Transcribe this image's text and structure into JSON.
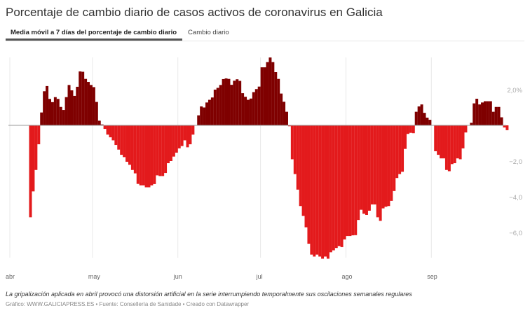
{
  "title": "Porcentaje de cambio diario de casos activos de coronavirus en Galicia",
  "tabs": [
    {
      "label": "Media móvil a 7 días del porcentaje de cambio diario",
      "active": true
    },
    {
      "label": "Cambio diario",
      "active": false
    }
  ],
  "note": "La gripalización aplicada en abril provocó una distorsión artificial en la serie interrumpiendo temporalmente sus oscilaciones semanales regulares",
  "source": "Gráfico: WWW.GALICIAPRESS.ES • Fuente: Consellería de Sanidade • Creado con Datawrapper",
  "colors": {
    "positive": "#7f0000",
    "negative": "#e31a1c",
    "grid": "#e8e8e8",
    "baseline": "#999999",
    "axis_text": "#aaaaaa"
  },
  "chart_data": {
    "type": "bar",
    "title": "Porcentaje de cambio diario de casos activos de coronavirus en Galicia",
    "xlabel": "",
    "ylabel": "",
    "ylim": [
      -7.6,
      4.0
    ],
    "y_ticks": [
      {
        "value": 2,
        "label": "2,0%"
      },
      {
        "value": -2,
        "label": "−2,0"
      },
      {
        "value": -4,
        "label": "−4,0"
      },
      {
        "value": -6,
        "label": "−6,0"
      }
    ],
    "x_ticks": [
      {
        "date": "04-01",
        "label": "abr"
      },
      {
        "date": "05-01",
        "label": "may"
      },
      {
        "date": "06-01",
        "label": "jun"
      },
      {
        "date": "07-01",
        "label": "jul"
      },
      {
        "date": "08-01",
        "label": "ago"
      },
      {
        "date": "09-01",
        "label": "sep"
      }
    ],
    "x_range": [
      "04-01",
      "09-28"
    ],
    "grid": "vertical",
    "dates": {
      "04": [
        8,
        9,
        10,
        11,
        12,
        13,
        14,
        15,
        16,
        17,
        18,
        19,
        20,
        21,
        22,
        23,
        24,
        25,
        26,
        27,
        28,
        29,
        30
      ],
      "05": [
        1,
        2,
        3,
        4,
        5,
        6,
        7,
        8,
        9,
        10,
        11,
        12,
        13,
        14,
        15,
        16,
        17,
        18,
        19,
        20,
        21,
        22,
        23,
        24,
        25,
        26,
        27,
        28,
        29,
        30,
        31
      ],
      "06": [
        1,
        2,
        3,
        4,
        5,
        6,
        7,
        8,
        9,
        10,
        11,
        12,
        13,
        14,
        15,
        16,
        17,
        18,
        19,
        20,
        21,
        22,
        23,
        24,
        25,
        26,
        27,
        28,
        29,
        30
      ],
      "07": [
        1,
        2,
        3,
        4,
        5,
        6,
        7,
        8,
        9,
        10,
        11,
        12,
        13,
        14,
        15,
        16,
        17,
        18,
        19,
        20,
        21,
        22,
        23,
        24,
        25,
        26,
        27,
        28,
        29,
        30,
        31
      ],
      "08": [
        1,
        2,
        3,
        4,
        5,
        6,
        7,
        8,
        9,
        10,
        11,
        12,
        13,
        14,
        15,
        16,
        17,
        18,
        19,
        20,
        21,
        22,
        23,
        24,
        25,
        26,
        27,
        28,
        29,
        30,
        31
      ],
      "09": [
        1,
        2,
        3,
        4,
        5,
        6,
        7,
        8,
        9,
        10,
        11,
        12,
        13,
        14,
        15,
        16,
        17,
        18,
        19,
        20,
        21,
        22,
        23,
        24,
        25,
        26,
        27,
        28
      ]
    },
    "values": [
      -5.15,
      -3.7,
      -2.5,
      -1.06,
      0.72,
      1.91,
      2.2,
      1.48,
      1.3,
      1.58,
      1.48,
      1.03,
      0.86,
      1.58,
      2.26,
      1.96,
      1.65,
      2.16,
      3.02,
      3.0,
      2.6,
      2.43,
      2.26,
      2.14,
      1.31,
      0.26,
      0.05,
      -0.2,
      -0.52,
      -0.67,
      -0.84,
      -1.1,
      -1.36,
      -1.65,
      -1.78,
      -2.04,
      -2.21,
      -2.5,
      -2.69,
      -3.28,
      -3.36,
      -3.36,
      -3.47,
      -3.47,
      -3.36,
      -3.29,
      -2.8,
      -2.84,
      -2.84,
      -2.67,
      -2.12,
      -2.0,
      -1.75,
      -1.53,
      -1.29,
      -1.16,
      -0.84,
      -1.23,
      -1.06,
      -0.52,
      0,
      0.56,
      1.06,
      1.0,
      1.28,
      1.43,
      1.56,
      2.0,
      2.1,
      2.26,
      2.59,
      2.63,
      2.6,
      2.27,
      2.5,
      2.58,
      2.49,
      1.8,
      1.6,
      1.43,
      1.5,
      1.86,
      2.03,
      2.17,
      3.25,
      3.25,
      3.54,
      3.8,
      3.54,
      2.98,
      2.6,
      1.78,
      1.32,
      0.76,
      -0.05,
      -1.9,
      -2.73,
      -3.6,
      -4.52,
      -5.07,
      -5.71,
      -6.63,
      -7.24,
      -7.35,
      -7.24,
      -7.35,
      -7.47,
      -7.35,
      -7.47,
      -7.11,
      -7.0,
      -6.87,
      -6.76,
      -6.82,
      -6.39,
      -6.2,
      -6.2,
      -6.16,
      -6.15,
      -5.3,
      -4.73,
      -4.95,
      -5.02,
      -4.78,
      -4.43,
      -4.43,
      -5.15,
      -5.35,
      -4.65,
      -4.56,
      -4.52,
      -4.23,
      -3.68,
      -2.95,
      -2.73,
      -2.6,
      -1.32,
      -0.48,
      -0.42,
      -0.44,
      0.76,
      1.06,
      1.17,
      0.7,
      0.43,
      0.31,
      0,
      -1.45,
      -1.65,
      -1.85,
      -1.85,
      -2.5,
      -2.57,
      -2.17,
      -2.12,
      -1.85,
      -1.9,
      -1.29,
      -0.4,
      0,
      0.14,
      1.23,
      1.49,
      1.17,
      1.28,
      1.35,
      1.35,
      1.35,
      0.76,
      1.03,
      1.03,
      0.45,
      -0.12,
      -0.27
    ]
  }
}
